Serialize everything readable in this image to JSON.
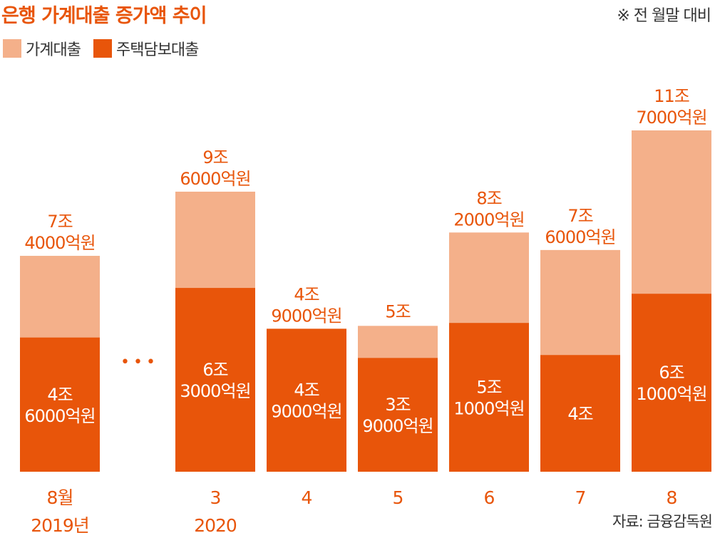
{
  "title": "은행 가계대출 증가액 추이",
  "note": "※ 전 월말 대비",
  "source": "자료: 금융감독원",
  "colors": {
    "household": "#F4B08A",
    "mortgage": "#E8550A",
    "text_orange": "#E8550A",
    "text_dark": "#333333"
  },
  "legend": [
    {
      "label": "가계대출",
      "color": "#F4B08A"
    },
    {
      "label": "주택담보대출",
      "color": "#E8550A"
    }
  ],
  "chart_data": {
    "type": "bar",
    "stacked": true,
    "unit": "억원",
    "categories": [
      "8월",
      "3",
      "4",
      "5",
      "6",
      "7",
      "8"
    ],
    "year_labels": [
      "2019년",
      "2020",
      "",
      "",
      "",
      "",
      ""
    ],
    "gap_marker": "• • •",
    "series": [
      {
        "name": "주택담보대출",
        "values": [
          46000,
          63000,
          49000,
          39000,
          51000,
          40000,
          61000
        ],
        "labels": [
          [
            "4조",
            "6000억원"
          ],
          [
            "6조",
            "3000억원"
          ],
          [
            "4조",
            "9000억원"
          ],
          [
            "3조",
            "9000억원"
          ],
          [
            "5조",
            "1000억원"
          ],
          [
            "4조"
          ],
          [
            "6조",
            "1000억원"
          ]
        ]
      },
      {
        "name": "가계대출",
        "values": [
          74000,
          96000,
          49000,
          50000,
          82000,
          76000,
          117000
        ],
        "labels": [
          [
            "7조",
            "4000억원"
          ],
          [
            "9조",
            "6000억원"
          ],
          [
            "4조",
            "9000억원"
          ],
          [
            "5조"
          ],
          [
            "8조",
            "2000억원"
          ],
          [
            "7조",
            "6000억원"
          ],
          [
            "11조",
            "7000억원"
          ]
        ]
      }
    ]
  }
}
